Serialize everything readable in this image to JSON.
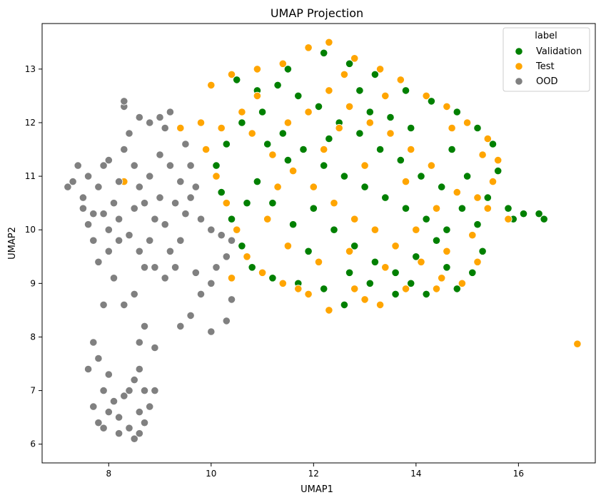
{
  "chart_data": {
    "type": "scatter",
    "title": "UMAP Projection",
    "xlabel": "UMAP1",
    "ylabel": "UMAP2",
    "xlim": [
      6.7,
      17.5
    ],
    "ylim": [
      5.65,
      13.85
    ],
    "xticks": [
      8,
      10,
      12,
      14,
      16
    ],
    "yticks": [
      6,
      7,
      8,
      9,
      10,
      11,
      12,
      13
    ],
    "grid": false,
    "legend": {
      "title": "label",
      "placement": "top-right"
    },
    "series": [
      {
        "name": "Validation",
        "color": "#008000",
        "points": [
          [
            10.5,
            12.8
          ],
          [
            10.9,
            12.6
          ],
          [
            11.5,
            13.0
          ],
          [
            12.2,
            13.3
          ],
          [
            12.7,
            13.1
          ],
          [
            13.2,
            12.9
          ],
          [
            13.8,
            12.6
          ],
          [
            14.3,
            12.4
          ],
          [
            14.8,
            12.2
          ],
          [
            15.2,
            11.9
          ],
          [
            15.5,
            11.6
          ],
          [
            15.6,
            11.1
          ],
          [
            15.4,
            10.6
          ],
          [
            15.2,
            10.1
          ],
          [
            15.3,
            9.6
          ],
          [
            15.1,
            9.2
          ],
          [
            14.8,
            8.9
          ],
          [
            14.2,
            8.8
          ],
          [
            13.6,
            8.8
          ],
          [
            13.1,
            9.0
          ],
          [
            12.6,
            8.6
          ],
          [
            12.2,
            8.9
          ],
          [
            11.7,
            9.0
          ],
          [
            11.2,
            9.1
          ],
          [
            10.8,
            9.3
          ],
          [
            10.6,
            9.7
          ],
          [
            10.4,
            10.2
          ],
          [
            10.2,
            10.7
          ],
          [
            10.1,
            11.2
          ],
          [
            10.3,
            11.6
          ],
          [
            10.6,
            12.0
          ],
          [
            11.0,
            12.2
          ],
          [
            11.4,
            11.8
          ],
          [
            11.8,
            11.5
          ],
          [
            12.2,
            11.2
          ],
          [
            12.6,
            11.0
          ],
          [
            13.0,
            10.8
          ],
          [
            13.4,
            10.6
          ],
          [
            13.8,
            10.4
          ],
          [
            14.2,
            10.2
          ],
          [
            14.6,
            10.0
          ],
          [
            14.9,
            10.4
          ],
          [
            14.5,
            10.8
          ],
          [
            14.1,
            11.0
          ],
          [
            13.7,
            11.3
          ],
          [
            13.3,
            11.5
          ],
          [
            12.9,
            11.8
          ],
          [
            12.5,
            12.0
          ],
          [
            12.1,
            12.3
          ],
          [
            11.7,
            12.5
          ],
          [
            11.3,
            12.7
          ],
          [
            12.0,
            10.4
          ],
          [
            12.4,
            10.0
          ],
          [
            12.8,
            9.7
          ],
          [
            13.2,
            9.4
          ],
          [
            13.6,
            9.2
          ],
          [
            14.0,
            9.5
          ],
          [
            14.4,
            9.8
          ],
          [
            11.6,
            10.1
          ],
          [
            11.2,
            10.5
          ],
          [
            10.9,
            10.9
          ],
          [
            11.5,
            11.3
          ],
          [
            12.3,
            11.7
          ],
          [
            13.1,
            12.2
          ],
          [
            13.9,
            11.9
          ],
          [
            14.7,
            11.5
          ],
          [
            15.0,
            11.0
          ],
          [
            15.8,
            10.4
          ],
          [
            16.1,
            10.3
          ],
          [
            16.4,
            10.3
          ],
          [
            16.5,
            10.2
          ],
          [
            15.9,
            10.2
          ],
          [
            12.9,
            12.6
          ],
          [
            13.5,
            12.1
          ],
          [
            11.9,
            9.6
          ],
          [
            12.7,
            9.2
          ],
          [
            13.9,
            9.0
          ],
          [
            14.6,
            9.3
          ],
          [
            10.7,
            10.5
          ],
          [
            11.1,
            11.6
          ]
        ]
      },
      {
        "name": "Test",
        "color": "#ffa500",
        "points": [
          [
            10.0,
            12.7
          ],
          [
            10.4,
            12.9
          ],
          [
            10.9,
            13.0
          ],
          [
            11.4,
            13.1
          ],
          [
            11.9,
            13.4
          ],
          [
            12.3,
            13.5
          ],
          [
            12.8,
            13.2
          ],
          [
            13.3,
            13.0
          ],
          [
            13.7,
            12.8
          ],
          [
            14.2,
            12.5
          ],
          [
            14.6,
            12.3
          ],
          [
            15.0,
            12.0
          ],
          [
            15.4,
            11.7
          ],
          [
            15.6,
            11.3
          ],
          [
            15.5,
            10.9
          ],
          [
            15.4,
            10.4
          ],
          [
            15.1,
            9.9
          ],
          [
            15.2,
            9.4
          ],
          [
            14.9,
            9.0
          ],
          [
            14.4,
            8.9
          ],
          [
            13.8,
            8.9
          ],
          [
            13.3,
            8.6
          ],
          [
            12.8,
            8.9
          ],
          [
            12.3,
            8.5
          ],
          [
            11.9,
            8.8
          ],
          [
            11.4,
            9.0
          ],
          [
            11.0,
            9.2
          ],
          [
            10.7,
            9.5
          ],
          [
            10.5,
            10.0
          ],
          [
            10.3,
            10.5
          ],
          [
            10.1,
            11.0
          ],
          [
            9.9,
            11.5
          ],
          [
            10.2,
            11.9
          ],
          [
            10.6,
            12.2
          ],
          [
            10.8,
            11.8
          ],
          [
            11.2,
            11.4
          ],
          [
            11.6,
            11.1
          ],
          [
            12.0,
            10.8
          ],
          [
            12.4,
            10.5
          ],
          [
            12.8,
            10.2
          ],
          [
            13.2,
            10.0
          ],
          [
            13.6,
            9.7
          ],
          [
            14.0,
            10.0
          ],
          [
            14.4,
            10.4
          ],
          [
            14.8,
            10.7
          ],
          [
            14.3,
            11.2
          ],
          [
            13.9,
            11.5
          ],
          [
            13.5,
            11.8
          ],
          [
            13.1,
            12.0
          ],
          [
            12.7,
            12.3
          ],
          [
            12.3,
            12.6
          ],
          [
            11.9,
            12.2
          ],
          [
            11.5,
            12.0
          ],
          [
            11.1,
            10.2
          ],
          [
            11.5,
            9.7
          ],
          [
            12.1,
            9.4
          ],
          [
            12.7,
            9.6
          ],
          [
            13.4,
            9.3
          ],
          [
            14.1,
            9.4
          ],
          [
            14.6,
            9.6
          ],
          [
            11.3,
            10.8
          ],
          [
            12.2,
            11.5
          ],
          [
            13.0,
            11.2
          ],
          [
            13.8,
            10.9
          ],
          [
            14.7,
            11.9
          ],
          [
            15.2,
            10.6
          ],
          [
            10.9,
            12.5
          ],
          [
            12.6,
            12.9
          ],
          [
            13.4,
            12.5
          ],
          [
            15.8,
            10.2
          ],
          [
            17.15,
            7.87
          ],
          [
            9.8,
            12.0
          ],
          [
            8.3,
            10.9
          ],
          [
            9.4,
            11.9
          ],
          [
            10.4,
            9.1
          ],
          [
            11.7,
            8.9
          ],
          [
            13.0,
            8.7
          ],
          [
            14.5,
            9.1
          ],
          [
            15.3,
            11.4
          ],
          [
            12.5,
            11.9
          ]
        ]
      },
      {
        "name": "OOD",
        "color": "#808080",
        "points": [
          [
            7.3,
            10.9
          ],
          [
            7.4,
            11.2
          ],
          [
            7.5,
            10.6
          ],
          [
            7.6,
            11.0
          ],
          [
            7.7,
            10.3
          ],
          [
            7.8,
            10.8
          ],
          [
            7.9,
            11.2
          ],
          [
            8.0,
            10.0
          ],
          [
            8.1,
            10.5
          ],
          [
            8.2,
            9.8
          ],
          [
            8.0,
            9.6
          ],
          [
            7.7,
            9.8
          ],
          [
            7.6,
            10.1
          ],
          [
            7.9,
            10.3
          ],
          [
            8.2,
            10.2
          ],
          [
            8.4,
            9.9
          ],
          [
            8.5,
            10.4
          ],
          [
            8.6,
            9.6
          ],
          [
            8.7,
            9.3
          ],
          [
            8.8,
            9.8
          ],
          [
            8.9,
            10.2
          ],
          [
            9.0,
            10.6
          ],
          [
            9.1,
            10.1
          ],
          [
            9.2,
            9.6
          ],
          [
            9.3,
            9.3
          ],
          [
            9.1,
            9.1
          ],
          [
            8.9,
            9.3
          ],
          [
            9.4,
            9.8
          ],
          [
            9.5,
            10.3
          ],
          [
            9.6,
            10.6
          ],
          [
            9.4,
            10.9
          ],
          [
            9.2,
            11.2
          ],
          [
            9.0,
            11.4
          ],
          [
            8.8,
            11.0
          ],
          [
            8.6,
            10.8
          ],
          [
            8.5,
            11.2
          ],
          [
            8.3,
            11.5
          ],
          [
            8.2,
            10.9
          ],
          [
            9.1,
            11.9
          ],
          [
            9.0,
            12.1
          ],
          [
            8.8,
            12.0
          ],
          [
            8.6,
            12.1
          ],
          [
            8.4,
            11.8
          ],
          [
            8.3,
            12.3
          ],
          [
            8.3,
            12.4
          ],
          [
            9.2,
            12.2
          ],
          [
            9.5,
            11.6
          ],
          [
            9.6,
            11.2
          ],
          [
            9.7,
            10.8
          ],
          [
            9.8,
            10.2
          ],
          [
            10.0,
            10.0
          ],
          [
            10.2,
            9.9
          ],
          [
            10.4,
            9.8
          ],
          [
            10.1,
            9.3
          ],
          [
            10.0,
            9.0
          ],
          [
            9.8,
            8.8
          ],
          [
            9.6,
            8.4
          ],
          [
            9.4,
            8.2
          ],
          [
            10.0,
            8.1
          ],
          [
            10.3,
            8.3
          ],
          [
            10.4,
            8.7
          ],
          [
            8.5,
            8.8
          ],
          [
            8.3,
            8.6
          ],
          [
            8.7,
            8.2
          ],
          [
            8.6,
            7.9
          ],
          [
            8.9,
            7.8
          ],
          [
            7.7,
            7.9
          ],
          [
            7.8,
            7.6
          ],
          [
            8.0,
            7.3
          ],
          [
            7.9,
            7.0
          ],
          [
            8.1,
            6.8
          ],
          [
            8.2,
            6.5
          ],
          [
            8.4,
            6.3
          ],
          [
            8.5,
            6.1
          ],
          [
            8.6,
            6.2
          ],
          [
            8.7,
            6.4
          ],
          [
            8.8,
            6.7
          ],
          [
            8.7,
            7.0
          ],
          [
            8.5,
            7.2
          ],
          [
            8.3,
            6.9
          ],
          [
            8.0,
            6.6
          ],
          [
            7.8,
            6.4
          ],
          [
            7.7,
            6.7
          ],
          [
            7.9,
            6.3
          ],
          [
            8.2,
            6.2
          ],
          [
            8.6,
            6.6
          ],
          [
            8.4,
            7.0
          ],
          [
            8.6,
            7.4
          ],
          [
            8.9,
            7.0
          ],
          [
            7.6,
            7.4
          ],
          [
            7.9,
            8.6
          ],
          [
            7.8,
            9.4
          ],
          [
            10.3,
            9.5
          ],
          [
            9.7,
            9.2
          ],
          [
            8.0,
            11.3
          ],
          [
            7.5,
            10.4
          ],
          [
            7.2,
            10.8
          ],
          [
            9.3,
            10.5
          ],
          [
            8.7,
            10.5
          ],
          [
            8.1,
            9.1
          ]
        ]
      }
    ]
  }
}
